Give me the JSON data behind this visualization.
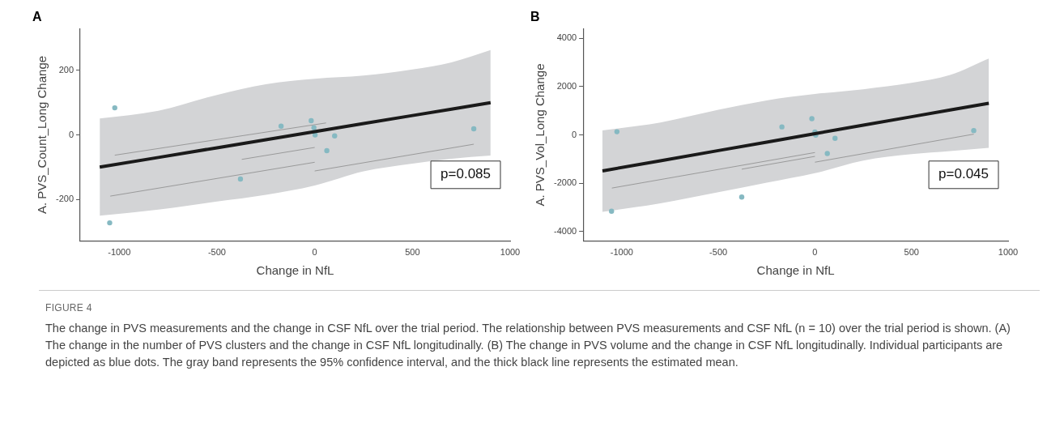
{
  "chart_data": [
    {
      "type": "scatter",
      "title": "A",
      "xlabel": "Change in NfL",
      "ylabel": "A. PVS_Count_Long Change",
      "xlim": [
        -1200,
        1000
      ],
      "ylim": [
        -330,
        330
      ],
      "xticks": [
        -1000,
        -500,
        0,
        500,
        1000
      ],
      "yticks": [
        -200,
        0,
        200
      ],
      "grid": false,
      "legend": false,
      "annotations": [
        "p=0.085",
        "FIGURE 4",
        "The change in PVS measurements and the change in CSF NfL over the trial period. The relationship between PVS measurements and CSF NfL (n = 10) over the trial period is shown. (A) The change in the number of PVS clusters and the change in CSF NfL longitudinally. (B) The change in PVS volume and the change in CSF NfL longitudinally. Individual participants are depicted as blue dots. The gray band represents the 95% confidence interval, and the thick black line represents the estimated mean."
      ],
      "series": [
        {
          "color": "#86b9c2",
          "marker": "circle",
          "x": [
            -1023,
            -1049,
            -172,
            -18,
            -4,
            2,
            102,
            62,
            -380,
            814
          ],
          "values": [
            84,
            -273,
            27,
            44,
            22,
            0,
            -3,
            -49,
            -137,
            19
          ]
        },
        {
          "type": "line",
          "color": "#1a1a1a",
          "x": [
            -1100,
            -800,
            -500,
            -250,
            0,
            250,
            500,
            700,
            900
          ],
          "values": [
            -100,
            -70,
            -40,
            -15,
            10,
            35,
            60,
            80,
            100
          ],
          "lower": [
            -251,
            -232,
            -207,
            -186,
            -157,
            -113,
            -89,
            -74,
            -64
          ],
          "upper": [
            51,
            75,
            124,
            157,
            174,
            184,
            203,
            225,
            263
          ]
        },
        {
          "type": "line",
          "color": "#8a8a8a",
          "x": [
            -1023,
            58
          ],
          "values": [
            -63,
            37
          ]
        },
        {
          "type": "line",
          "color": "#8a8a8a",
          "x": [
            -373,
            0
          ],
          "values": [
            -76,
            -39
          ]
        },
        {
          "type": "line",
          "color": "#8a8a8a",
          "x": [
            -1046,
            0
          ],
          "values": [
            -190,
            -85
          ]
        },
        {
          "type": "line",
          "color": "#8a8a8a",
          "x": [
            0,
            814
          ],
          "values": [
            -112,
            -29
          ]
        }
      ]
    },
    {
      "type": "scatter",
      "title": "B",
      "xlabel": "Change in NfL",
      "ylabel": "A. PVS_Vol_Long Change",
      "xlim": [
        -1200,
        1000
      ],
      "ylim": [
        -4400,
        4400
      ],
      "xticks": [
        -1000,
        -500,
        0,
        500,
        1000
      ],
      "yticks": [
        -4000,
        -2000,
        0,
        2000,
        4000
      ],
      "grid": false,
      "legend": false,
      "annotations": [
        "p=0.045"
      ],
      "series": [
        {
          "color": "#86b9c2",
          "marker": "circle",
          "x": [
            -1025,
            -1053,
            -171,
            -16,
            0,
            4,
            104,
            64,
            -379,
            822
          ],
          "values": [
            130,
            -3160,
            330,
            670,
            120,
            -10,
            -140,
            -770,
            -2570,
            180
          ]
        },
        {
          "type": "line",
          "color": "#1a1a1a",
          "x": [
            -1100,
            -800,
            -500,
            -250,
            0,
            250,
            500,
            700,
            900
          ],
          "values": [
            -1490,
            -1070,
            -650,
            -300,
            50,
            400,
            750,
            1030,
            1310
          ],
          "lower": [
            -3185,
            -2830,
            -2372,
            -1979,
            -1586,
            -1062,
            -800,
            -668,
            -537
          ],
          "upper": [
            183,
            511,
            1035,
            1428,
            1690,
            1887,
            2149,
            2477,
            3158
          ]
        },
        {
          "type": "line",
          "color": "#8a8a8a",
          "x": [
            -1051,
            0
          ],
          "values": [
            -2200,
            -730
          ]
        },
        {
          "type": "line",
          "color": "#8a8a8a",
          "x": [
            -379,
            0
          ],
          "values": [
            -1420,
            -890
          ]
        },
        {
          "type": "line",
          "color": "#8a8a8a",
          "x": [
            0,
            822
          ],
          "values": [
            -1130,
            30
          ]
        }
      ]
    }
  ]
}
